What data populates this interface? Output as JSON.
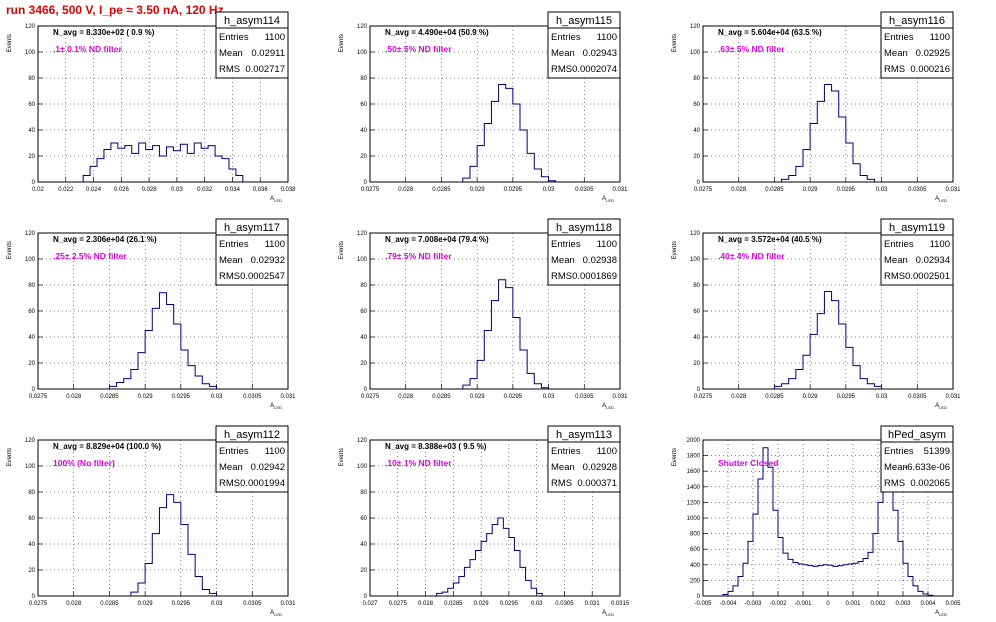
{
  "page_title": "run 3466,   500 V, I_pe ≈ 3.50 nA, 120 Hz",
  "colors": {
    "title": "#e00000",
    "hist": "#00007a",
    "annotation": "#e000e0",
    "grid": "#000000"
  },
  "chart_data": [
    {
      "type": "histogram",
      "name": "h_asym114",
      "stats": [
        {
          "label": "Entries",
          "value": "1100"
        },
        {
          "label": "Mean",
          "value": "0.02911"
        },
        {
          "label": "RMS",
          "value": "0.002717"
        }
      ],
      "navg": "N_avg = 8.330e+02 ( 0.9 %)",
      "filter": ".1± 0.1% ND filter",
      "xlabel": "A_LED",
      "ylabel": "Events",
      "xlim": [
        0.02,
        0.038
      ],
      "ylim": [
        0,
        120
      ],
      "xticks": [
        0.02,
        0.022,
        0.024,
        0.026,
        0.028,
        0.03,
        0.032,
        0.034,
        0.036,
        0.038
      ],
      "xticklabels": [
        "0.02",
        "0.022",
        "0.024",
        "0.026",
        "0.028",
        "0.03",
        "0.032",
        "0.034",
        "0.036",
        "0.038"
      ],
      "yticks": [
        0,
        20,
        40,
        60,
        80,
        100,
        120
      ],
      "x": [
        0.0235,
        0.024,
        0.0245,
        0.025,
        0.0255,
        0.026,
        0.0265,
        0.027,
        0.0275,
        0.028,
        0.0285,
        0.029,
        0.0295,
        0.03,
        0.0305,
        0.031,
        0.0315,
        0.032,
        0.0325,
        0.033,
        0.0335,
        0.034,
        0.0345
      ],
      "values": [
        5,
        12,
        18,
        25,
        30,
        26,
        28,
        22,
        30,
        25,
        28,
        20,
        27,
        24,
        29,
        22,
        30,
        26,
        28,
        20,
        18,
        10,
        5
      ]
    },
    {
      "type": "histogram",
      "name": "h_asym115",
      "stats": [
        {
          "label": "Entries",
          "value": "1100"
        },
        {
          "label": "Mean",
          "value": "0.02943"
        },
        {
          "label": "RMS",
          "value": "0.0002074"
        }
      ],
      "navg": "N_avg = 4.490e+04 (50.9 %)",
      "filter": ".50± 5% ND filter",
      "xlabel": "A_LED",
      "ylabel": "Events",
      "xlim": [
        0.0275,
        0.031
      ],
      "ylim": [
        0,
        120
      ],
      "xticks": [
        0.0275,
        0.028,
        0.0285,
        0.029,
        0.0295,
        0.03,
        0.0305,
        0.031
      ],
      "xticklabels": [
        "0.0275",
        "0.028",
        "0.0285",
        "0.029",
        "0.0295",
        "0.03",
        "0.0305",
        "0.031"
      ],
      "yticks": [
        0,
        20,
        40,
        60,
        80,
        100,
        120
      ],
      "x": [
        0.02885,
        0.02895,
        0.02905,
        0.02915,
        0.02925,
        0.02935,
        0.02945,
        0.02955,
        0.02965,
        0.02975,
        0.02985,
        0.02995,
        0.03005
      ],
      "values": [
        3,
        12,
        28,
        45,
        62,
        75,
        72,
        60,
        40,
        22,
        10,
        4,
        1
      ]
    },
    {
      "type": "histogram",
      "name": "h_asym116",
      "stats": [
        {
          "label": "Entries",
          "value": "1100"
        },
        {
          "label": "Mean",
          "value": "0.02925"
        },
        {
          "label": "RMS",
          "value": "0.000216"
        }
      ],
      "navg": "N_avg = 5.604e+04 (63.5 %)",
      "filter": ".63± 5% ND filter",
      "xlabel": "A_LED",
      "ylabel": "Events",
      "xlim": [
        0.0275,
        0.031
      ],
      "ylim": [
        0,
        120
      ],
      "xticks": [
        0.0275,
        0.028,
        0.0285,
        0.029,
        0.0295,
        0.03,
        0.0305,
        0.031
      ],
      "xticklabels": [
        "0.0275",
        "0.028",
        "0.0285",
        "0.029",
        "0.0295",
        "0.03",
        "0.0305",
        "0.031"
      ],
      "yticks": [
        0,
        20,
        40,
        60,
        80,
        100,
        120
      ],
      "x": [
        0.02865,
        0.02875,
        0.02885,
        0.02895,
        0.02905,
        0.02915,
        0.02925,
        0.02935,
        0.02945,
        0.02955,
        0.02965,
        0.02975,
        0.02985
      ],
      "values": [
        2,
        5,
        12,
        25,
        45,
        62,
        75,
        70,
        50,
        30,
        14,
        5,
        2
      ]
    },
    {
      "type": "histogram",
      "name": "h_asym117",
      "stats": [
        {
          "label": "Entries",
          "value": "1100"
        },
        {
          "label": "Mean",
          "value": "0.02932"
        },
        {
          "label": "RMS",
          "value": "0.0002547"
        }
      ],
      "navg": "N_avg = 2.306e+04 (26.1 %)",
      "filter": ".25± 2.5% ND filter",
      "xlabel": "A_LED",
      "ylabel": "Events",
      "xlim": [
        0.0275,
        0.031
      ],
      "ylim": [
        0,
        120
      ],
      "xticks": [
        0.0275,
        0.028,
        0.0285,
        0.029,
        0.0295,
        0.03,
        0.0305,
        0.031
      ],
      "xticklabels": [
        "0.0275",
        "0.028",
        "0.0285",
        "0.029",
        "0.0295",
        "0.03",
        "0.0305",
        "0.031"
      ],
      "yticks": [
        0,
        20,
        40,
        60,
        80,
        100,
        120
      ],
      "x": [
        0.02855,
        0.02865,
        0.02875,
        0.02885,
        0.02895,
        0.02905,
        0.02915,
        0.02925,
        0.02935,
        0.02945,
        0.02955,
        0.02965,
        0.02975,
        0.02985,
        0.02995
      ],
      "values": [
        2,
        5,
        8,
        15,
        28,
        45,
        62,
        74,
        65,
        50,
        30,
        18,
        10,
        4,
        2
      ]
    },
    {
      "type": "histogram",
      "name": "h_asym118",
      "stats": [
        {
          "label": "Entries",
          "value": "1100"
        },
        {
          "label": "Mean",
          "value": "0.02938"
        },
        {
          "label": "RMS",
          "value": "0.0001869"
        }
      ],
      "navg": "N_avg = 7.008e+04 (79.4 %)",
      "filter": ".79± 5% ND filter",
      "xlabel": "A_LED",
      "ylabel": "Events",
      "xlim": [
        0.0275,
        0.031
      ],
      "ylim": [
        0,
        120
      ],
      "xticks": [
        0.0275,
        0.028,
        0.0285,
        0.029,
        0.0295,
        0.03,
        0.0305,
        0.031
      ],
      "xticklabels": [
        "0.0275",
        "0.028",
        "0.0285",
        "0.029",
        "0.0295",
        "0.03",
        "0.0305",
        "0.031"
      ],
      "yticks": [
        0,
        20,
        40,
        60,
        80,
        100,
        120
      ],
      "x": [
        0.02885,
        0.02895,
        0.02905,
        0.02915,
        0.02925,
        0.02935,
        0.02945,
        0.02955,
        0.02965,
        0.02975,
        0.02985,
        0.02995
      ],
      "values": [
        3,
        8,
        22,
        45,
        68,
        84,
        78,
        55,
        30,
        12,
        4,
        1
      ]
    },
    {
      "type": "histogram",
      "name": "h_asym119",
      "stats": [
        {
          "label": "Entries",
          "value": "1100"
        },
        {
          "label": "Mean",
          "value": "0.02934"
        },
        {
          "label": "RMS",
          "value": "0.0002501"
        }
      ],
      "navg": "N_avg = 3.572e+04 (40.5 %)",
      "filter": ".40± 4% ND filter",
      "xlabel": "A_LED",
      "ylabel": "Events",
      "xlim": [
        0.0275,
        0.031
      ],
      "ylim": [
        0,
        120
      ],
      "xticks": [
        0.0275,
        0.028,
        0.0285,
        0.029,
        0.0295,
        0.03,
        0.0305,
        0.031
      ],
      "xticklabels": [
        "0.0275",
        "0.028",
        "0.0285",
        "0.029",
        "0.0295",
        "0.03",
        "0.0305",
        "0.031"
      ],
      "yticks": [
        0,
        20,
        40,
        60,
        80,
        100,
        120
      ],
      "x": [
        0.02855,
        0.02865,
        0.02875,
        0.02885,
        0.02895,
        0.02905,
        0.02915,
        0.02925,
        0.02935,
        0.02945,
        0.02955,
        0.02965,
        0.02975,
        0.02985,
        0.02995
      ],
      "values": [
        2,
        4,
        8,
        15,
        26,
        42,
        58,
        75,
        68,
        50,
        32,
        18,
        8,
        4,
        2
      ]
    },
    {
      "type": "histogram",
      "name": "h_asym112",
      "stats": [
        {
          "label": "Entries",
          "value": "1100"
        },
        {
          "label": "Mean",
          "value": "0.02942"
        },
        {
          "label": "RMS",
          "value": "0.0001994"
        }
      ],
      "navg": "N_avg = 8.829e+04 (100.0 %)",
      "filter": "100% (No filter)",
      "xlabel": "A_LED",
      "ylabel": "Events",
      "xlim": [
        0.0275,
        0.031
      ],
      "ylim": [
        0,
        120
      ],
      "xticks": [
        0.0275,
        0.028,
        0.0285,
        0.029,
        0.0295,
        0.03,
        0.0305,
        0.031
      ],
      "xticklabels": [
        "0.0275",
        "0.028",
        "0.0285",
        "0.029",
        "0.0295",
        "0.03",
        "0.0305",
        "0.031"
      ],
      "yticks": [
        0,
        20,
        40,
        60,
        80,
        100,
        120
      ],
      "x": [
        0.02885,
        0.02895,
        0.02905,
        0.02915,
        0.02925,
        0.02935,
        0.02945,
        0.02955,
        0.02965,
        0.02975,
        0.02985,
        0.02995
      ],
      "values": [
        3,
        10,
        25,
        48,
        68,
        78,
        72,
        55,
        32,
        15,
        5,
        2
      ]
    },
    {
      "type": "histogram",
      "name": "h_asym113",
      "stats": [
        {
          "label": "Entries",
          "value": "1100"
        },
        {
          "label": "Mean",
          "value": "0.02928"
        },
        {
          "label": "RMS",
          "value": "0.000371"
        }
      ],
      "navg": "N_avg = 8.388e+03 ( 9.5 %)",
      "filter": ".10± 1% ND filter",
      "xlabel": "A_LED",
      "ylabel": "Events",
      "xlim": [
        0.027,
        0.0315
      ],
      "ylim": [
        0,
        120
      ],
      "xticks": [
        0.027,
        0.0275,
        0.028,
        0.0285,
        0.029,
        0.0295,
        0.03,
        0.0305,
        0.031,
        0.0315
      ],
      "xticklabels": [
        "0.027",
        "0.0275",
        "0.028",
        "0.0285",
        "0.029",
        "0.0295",
        "0.03",
        "0.0305",
        "0.031",
        "0.0315"
      ],
      "yticks": [
        0,
        20,
        40,
        60,
        80,
        100,
        120
      ],
      "x": [
        0.02825,
        0.02835,
        0.02845,
        0.02855,
        0.02865,
        0.02875,
        0.02885,
        0.02895,
        0.02905,
        0.02915,
        0.02925,
        0.02935,
        0.02945,
        0.02955,
        0.02965,
        0.02975,
        0.02985,
        0.02995,
        0.03005
      ],
      "values": [
        2,
        3,
        6,
        10,
        15,
        22,
        28,
        35,
        42,
        48,
        55,
        60,
        52,
        45,
        35,
        22,
        12,
        6,
        2
      ]
    },
    {
      "type": "histogram",
      "name": "hPed_asym",
      "stats": [
        {
          "label": "Entries",
          "value": "51399"
        },
        {
          "label": "Mean",
          "value": "-6.633e-06"
        },
        {
          "label": "RMS",
          "value": "0.002065"
        }
      ],
      "navg": "",
      "filter": "Shutter Closed",
      "xlabel": "A_LED",
      "ylabel": "Events",
      "xlim": [
        -0.005,
        0.005
      ],
      "ylim": [
        0,
        2000
      ],
      "xticks": [
        -0.005,
        -0.004,
        -0.003,
        -0.002,
        -0.001,
        0,
        0.001,
        0.002,
        0.003,
        0.004,
        0.005
      ],
      "xticklabels": [
        "-0.005",
        "-0.004",
        "-0.003",
        "-0.002",
        "-0.001",
        "0",
        "0.001",
        "0.002",
        "0.003",
        "0.004",
        "0.005"
      ],
      "yticks": [
        0,
        200,
        400,
        600,
        800,
        1000,
        1200,
        1400,
        1600,
        1800,
        2000
      ],
      "x": [
        -0.0041,
        -0.0039,
        -0.0037,
        -0.0035,
        -0.0033,
        -0.0031,
        -0.0029,
        -0.0027,
        -0.0025,
        -0.0023,
        -0.0021,
        -0.0019,
        -0.0017,
        -0.0015,
        -0.0013,
        -0.0011,
        -0.0009,
        -0.0007,
        -0.0005,
        -0.0003,
        -0.0001,
        0.0001,
        0.0003,
        0.0005,
        0.0007,
        0.0009,
        0.0011,
        0.0013,
        0.0015,
        0.0017,
        0.0019,
        0.0021,
        0.0023,
        0.0025,
        0.0027,
        0.0029,
        0.0031,
        0.0033,
        0.0035,
        0.0037,
        0.0039,
        0.0041
      ],
      "values": [
        20,
        60,
        130,
        250,
        420,
        700,
        1050,
        1500,
        1900,
        1650,
        1100,
        750,
        550,
        470,
        430,
        410,
        400,
        390,
        380,
        390,
        400,
        395,
        380,
        390,
        400,
        410,
        420,
        440,
        480,
        560,
        800,
        1200,
        1780,
        1600,
        1100,
        700,
        420,
        250,
        130,
        60,
        25,
        10
      ]
    }
  ]
}
